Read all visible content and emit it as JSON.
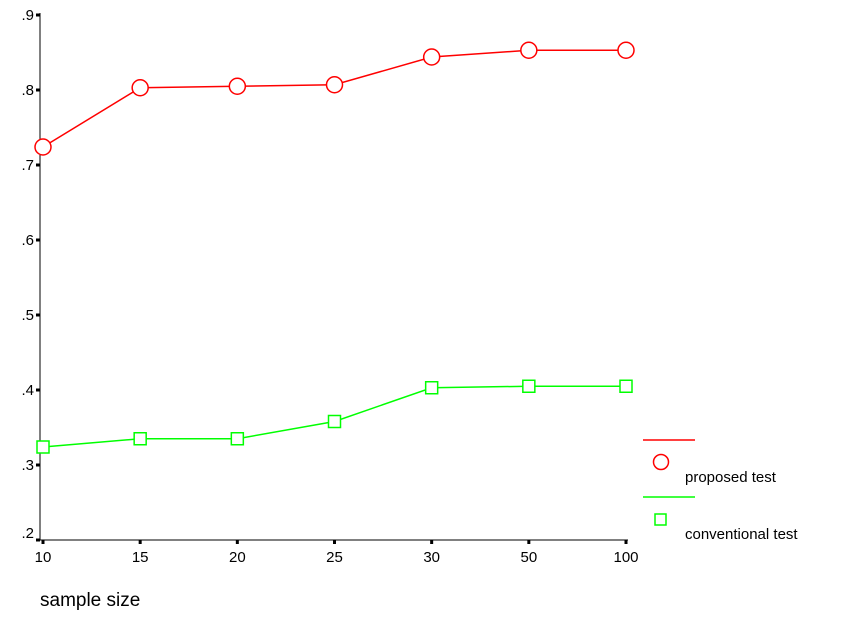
{
  "chart_data": {
    "type": "line",
    "categories": [
      "10",
      "15",
      "20",
      "25",
      "30",
      "50",
      "100"
    ],
    "yticks": [
      ".2",
      ".3",
      ".4",
      ".5",
      ".6",
      ".7",
      ".8",
      ".9"
    ],
    "ylim": [
      0.2,
      0.9
    ],
    "xlabel": "sample size",
    "ylabel": "",
    "grid": false,
    "legend_position": "right",
    "series": [
      {
        "name": "proposed test",
        "marker": "circle",
        "color": "#ff0000",
        "values": [
          0.724,
          0.803,
          0.805,
          0.807,
          0.844,
          0.853,
          0.853
        ]
      },
      {
        "name": "conventional test",
        "marker": "square",
        "color": "#00ff00",
        "values": [
          0.324,
          0.335,
          0.335,
          0.358,
          0.403,
          0.405,
          0.405
        ]
      }
    ]
  }
}
